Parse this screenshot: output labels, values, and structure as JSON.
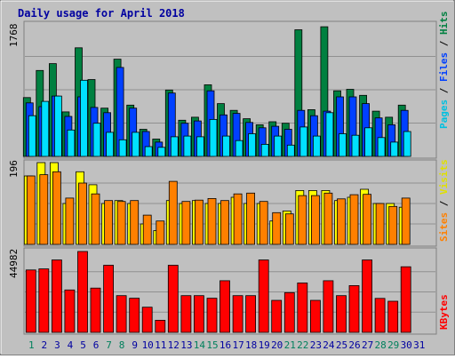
{
  "chart_data": [
    {
      "type": "bar",
      "title": "Daily usage for April 2018",
      "ylabel_max": "1768",
      "legend": [
        "Pages",
        "Files",
        "Hits"
      ],
      "categories": [
        "1",
        "2",
        "3",
        "4",
        "5",
        "6",
        "7",
        "8",
        "9",
        "10",
        "11",
        "12",
        "13",
        "14",
        "15",
        "16",
        "17",
        "18",
        "19",
        "20",
        "21",
        "22",
        "23",
        "24",
        "25",
        "26",
        "27",
        "28",
        "29",
        "30",
        "31"
      ],
      "ylim": [
        0,
        1768
      ],
      "series": [
        {
          "name": "Hits",
          "values": [
            780,
            1140,
            1230,
            590,
            1440,
            1020,
            640,
            1290,
            680,
            360,
            230,
            880,
            480,
            520,
            950,
            700,
            610,
            500,
            420,
            460,
            440,
            1680,
            620,
            1720,
            870,
            890,
            810,
            600,
            520,
            680,
            0
          ]
        },
        {
          "name": "Files",
          "values": [
            710,
            660,
            800,
            530,
            790,
            650,
            580,
            1180,
            640,
            330,
            190,
            840,
            440,
            470,
            870,
            550,
            570,
            450,
            380,
            400,
            360,
            610,
            540,
            600,
            790,
            790,
            700,
            510,
            420,
            610,
            0
          ]
        },
        {
          "name": "Pages",
          "values": [
            540,
            730,
            800,
            350,
            1010,
            440,
            320,
            220,
            320,
            130,
            120,
            260,
            270,
            260,
            490,
            270,
            210,
            300,
            160,
            270,
            150,
            390,
            270,
            580,
            300,
            280,
            380,
            250,
            190,
            330,
            0
          ]
        }
      ]
    },
    {
      "type": "bar",
      "ylabel_max": "196",
      "legend": [
        "Sites",
        "Visits"
      ],
      "categories": [
        "1",
        "2",
        "3",
        "4",
        "5",
        "6",
        "7",
        "8",
        "9",
        "10",
        "11",
        "12",
        "13",
        "14",
        "15",
        "16",
        "17",
        "18",
        "19",
        "20",
        "21",
        "22",
        "23",
        "24",
        "25",
        "26",
        "27",
        "28",
        "29",
        "30",
        "31"
      ],
      "ylim": [
        0,
        196
      ],
      "series": [
        {
          "name": "Visits",
          "values": [
            164,
            196,
            196,
            98,
            174,
            143,
            98,
            105,
            98,
            49,
            33,
            105,
            98,
            105,
            98,
            98,
            113,
            98,
            98,
            56,
            80,
            129,
            129,
            129,
            105,
            113,
            132,
            98,
            98,
            89,
            0
          ]
        },
        {
          "name": "Sites",
          "values": [
            164,
            167,
            174,
            111,
            147,
            121,
            105,
            103,
            105,
            70,
            56,
            151,
            103,
            106,
            110,
            105,
            121,
            123,
            103,
            76,
            73,
            117,
            117,
            123,
            109,
            119,
            120,
            98,
            91,
            111,
            0
          ]
        }
      ]
    },
    {
      "type": "bar",
      "ylabel_max": "44982",
      "legend": [
        "KBytes"
      ],
      "categories": [
        "1",
        "2",
        "3",
        "4",
        "5",
        "6",
        "7",
        "8",
        "9",
        "10",
        "11",
        "12",
        "13",
        "14",
        "15",
        "16",
        "17",
        "18",
        "19",
        "20",
        "21",
        "22",
        "23",
        "24",
        "25",
        "26",
        "27",
        "28",
        "29",
        "30",
        "31"
      ],
      "ylim": [
        0,
        44982
      ],
      "series": [
        {
          "name": "KBytes",
          "values": [
            34700,
            35300,
            40300,
            23600,
            45000,
            24600,
            37300,
            20400,
            19000,
            14000,
            6700,
            37300,
            20400,
            20400,
            19000,
            28700,
            20400,
            20400,
            40300,
            17800,
            22100,
            27500,
            17800,
            28700,
            20400,
            26000,
            40300,
            18900,
            17300,
            36500,
            0
          ]
        }
      ]
    }
  ],
  "colors": {
    "background": "#c0c0c0",
    "plot_bg": "#c0c0c0",
    "title": "#0000a0",
    "hits": "#008040",
    "files": "#0040ff",
    "pages": "#00e0ff",
    "visits": "#ffff00",
    "sites": "#ff8000",
    "kbytes": "#ff0000",
    "weekend_label": "#00805c",
    "weekday_label": "#0000a0"
  },
  "weekend_days": [
    "1",
    "7",
    "8",
    "14",
    "15",
    "21",
    "22",
    "28",
    "29"
  ]
}
